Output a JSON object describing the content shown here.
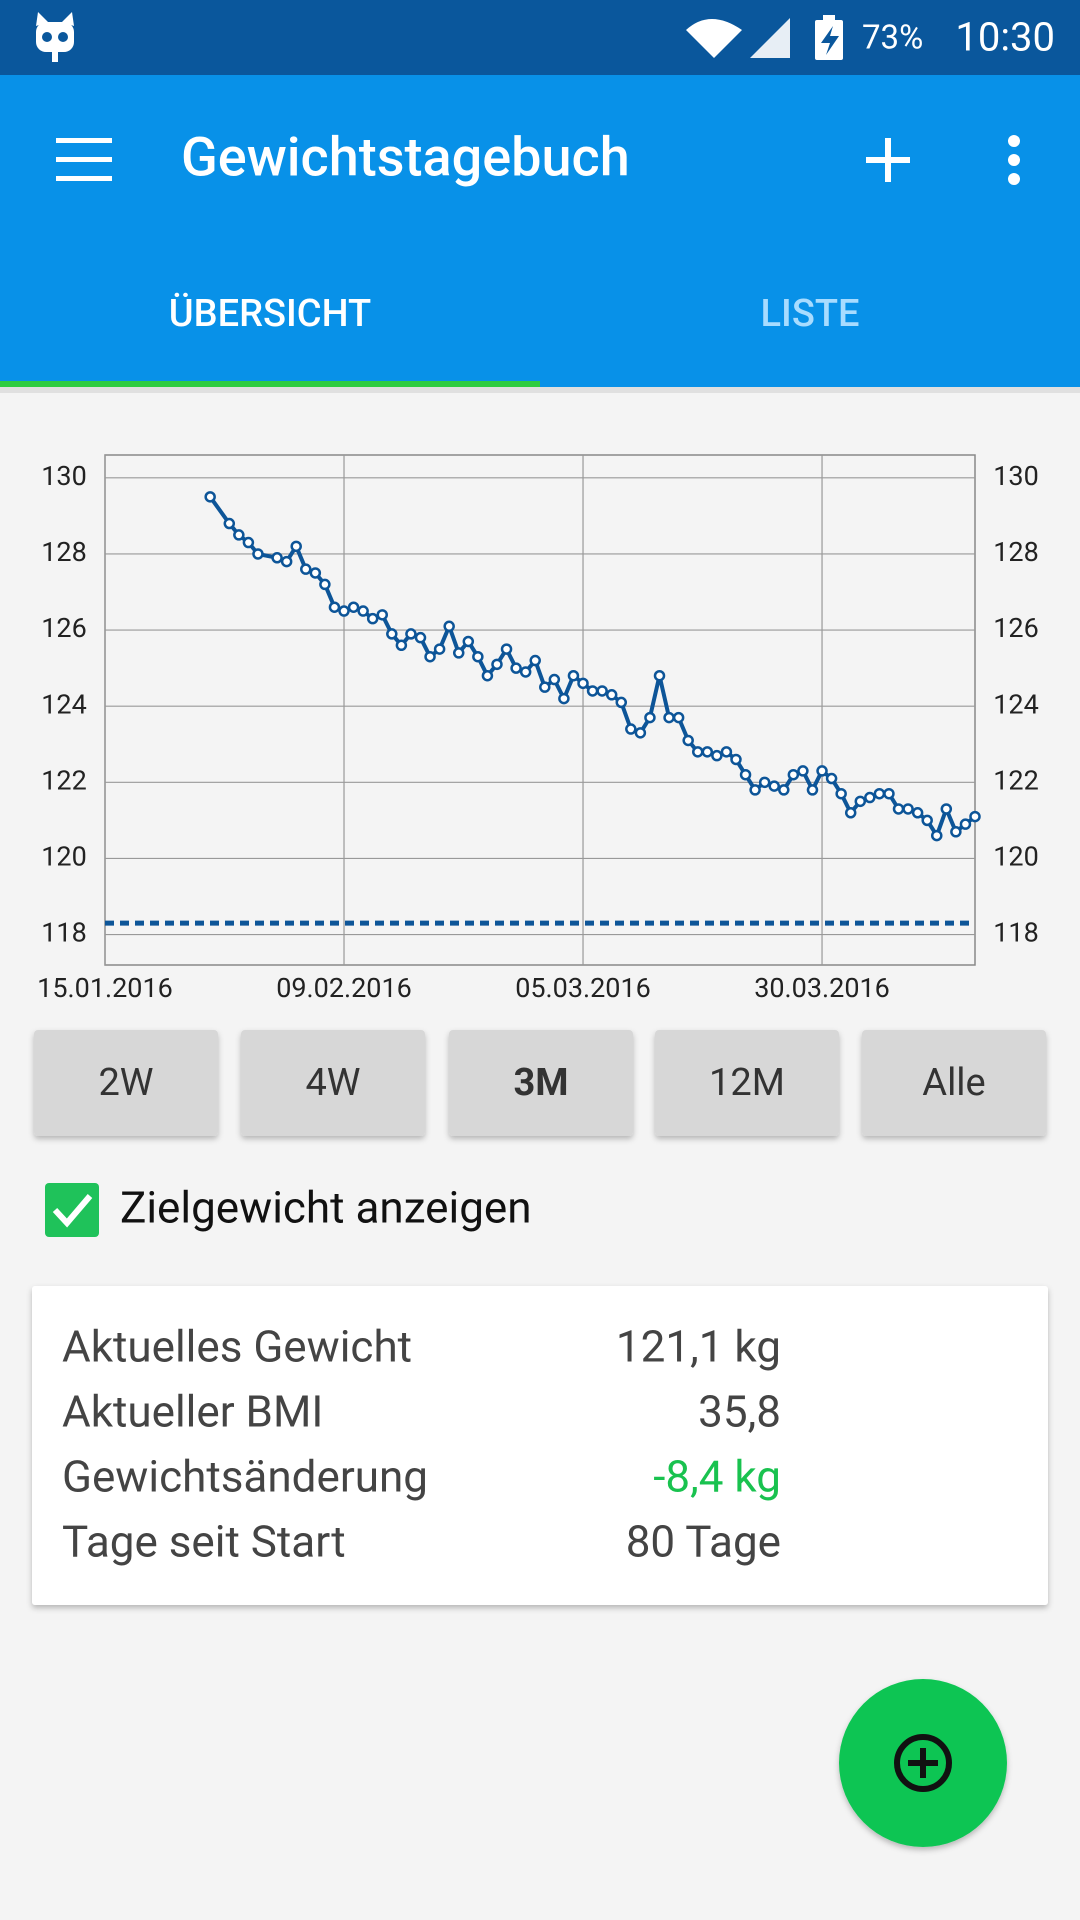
{
  "status_bar": {
    "battery": "73%",
    "time": "10:30"
  },
  "app_bar": {
    "title": "Gewichtstagebuch"
  },
  "tabs": [
    {
      "label": "ÜBERSICHT",
      "selected": true
    },
    {
      "label": "LISTE",
      "selected": false
    }
  ],
  "chart_data": {
    "type": "line",
    "color": "#0d5598",
    "x": [
      "26.01.2016",
      "28.01.2016",
      "29.01.2016",
      "30.01.2016",
      "31.01.2016",
      "02.02.2016",
      "03.02.2016",
      "04.02.2016",
      "05.02.2016",
      "06.02.2016",
      "07.02.2016",
      "08.02.2016",
      "09.02.2016",
      "10.02.2016",
      "11.02.2016",
      "12.02.2016",
      "13.02.2016",
      "14.02.2016",
      "15.02.2016",
      "16.02.2016",
      "17.02.2016",
      "18.02.2016",
      "19.02.2016",
      "20.02.2016",
      "21.02.2016",
      "22.02.2016",
      "23.02.2016",
      "24.02.2016",
      "25.02.2016",
      "26.02.2016",
      "27.02.2016",
      "28.02.2016",
      "29.02.2016",
      "01.03.2016",
      "02.03.2016",
      "03.03.2016",
      "04.03.2016",
      "05.03.2016",
      "06.03.2016",
      "07.03.2016",
      "08.03.2016",
      "09.03.2016",
      "10.03.2016",
      "11.03.2016",
      "12.03.2016",
      "13.03.2016",
      "14.03.2016",
      "15.03.2016",
      "16.03.2016",
      "17.03.2016",
      "18.03.2016",
      "19.03.2016",
      "20.03.2016",
      "21.03.2016",
      "22.03.2016",
      "23.03.2016",
      "24.03.2016",
      "25.03.2016",
      "26.03.2016",
      "27.03.2016",
      "28.03.2016",
      "29.03.2016",
      "30.03.2016",
      "31.03.2016",
      "01.04.2016",
      "02.04.2016",
      "03.04.2016",
      "04.04.2016",
      "05.04.2016",
      "06.04.2016",
      "07.04.2016",
      "08.04.2016",
      "09.04.2016",
      "10.04.2016",
      "11.04.2016",
      "12.04.2016",
      "13.04.2016",
      "14.04.2016",
      "15.04.2016"
    ],
    "values": [
      129.5,
      128.8,
      128.5,
      128.3,
      128.0,
      127.9,
      127.8,
      128.2,
      127.6,
      127.5,
      127.2,
      126.6,
      126.5,
      126.6,
      126.5,
      126.3,
      126.4,
      125.9,
      125.6,
      125.9,
      125.8,
      125.3,
      125.5,
      126.1,
      125.4,
      125.7,
      125.3,
      124.8,
      125.1,
      125.5,
      125.0,
      124.9,
      125.2,
      124.5,
      124.7,
      124.2,
      124.8,
      124.6,
      124.4,
      124.4,
      124.3,
      124.1,
      123.4,
      123.3,
      123.7,
      124.8,
      123.7,
      123.7,
      123.1,
      122.8,
      122.8,
      122.7,
      122.8,
      122.6,
      122.2,
      121.8,
      122.0,
      121.9,
      121.8,
      122.2,
      122.3,
      121.8,
      122.3,
      122.1,
      121.7,
      121.2,
      121.5,
      121.6,
      121.7,
      121.7,
      121.3,
      121.3,
      121.2,
      121.0,
      120.6,
      121.3,
      120.7,
      120.9,
      121.1
    ],
    "goal_line": 118.3,
    "xlim": [
      "15.01.2016",
      "15.04.2016"
    ],
    "xticks": [
      "15.01.2016",
      "09.02.2016",
      "05.03.2016",
      "30.03.2016"
    ],
    "ylim": [
      117.2,
      130.6
    ],
    "yticks": [
      118,
      120,
      122,
      124,
      126,
      128,
      130
    ],
    "grid": true
  },
  "range_buttons": [
    {
      "label": "2W",
      "selected": false
    },
    {
      "label": "4W",
      "selected": false
    },
    {
      "label": "3M",
      "selected": true
    },
    {
      "label": "12M",
      "selected": false
    },
    {
      "label": "Alle",
      "selected": false
    }
  ],
  "goal_checkbox": {
    "label": "Zielgewicht anzeigen",
    "checked": true
  },
  "stats": [
    {
      "label": "Aktuelles Gewicht",
      "value": "121,1 kg"
    },
    {
      "label": "Aktueller BMI",
      "value": "35,8"
    },
    {
      "label": "Gewichtsänderung",
      "value": "-8,4 kg"
    },
    {
      "label": "Tage seit Start",
      "value": "80 Tage"
    }
  ]
}
